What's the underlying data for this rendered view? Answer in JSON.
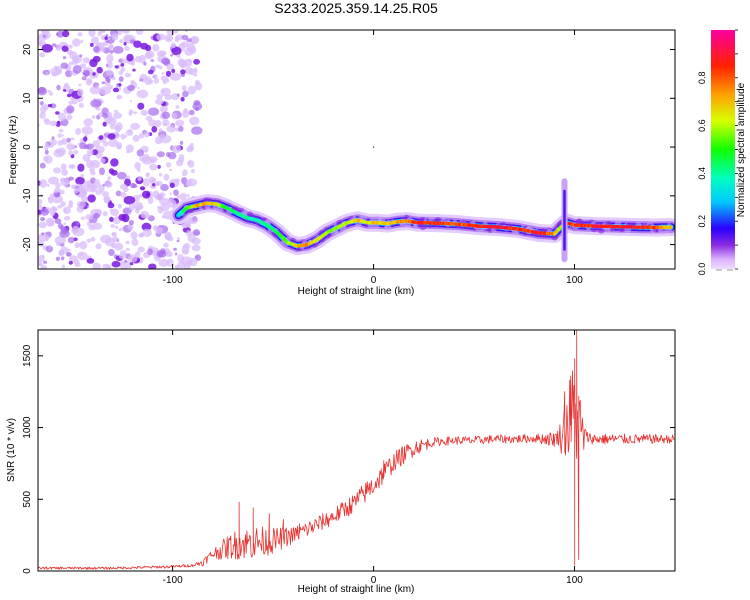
{
  "figure": {
    "title": "S233.2025.359.14.25.R05"
  },
  "chart_data": [
    {
      "type": "heatmap",
      "xlabel": "Height of straight line (km)",
      "ylabel": "Frequency (Hz)",
      "xlim": [
        -167,
        150
      ],
      "ylim": [
        -25,
        24
      ],
      "xticks": [
        -100,
        0,
        100
      ],
      "yticks": [
        -20,
        -10,
        0,
        10,
        20
      ],
      "colorbar": {
        "label": "Normalized spectral amplitude",
        "range": [
          0,
          1
        ],
        "ticks": [
          "0.0",
          "0.2",
          "0.4",
          "0.6",
          "0.8"
        ]
      },
      "noise_region_x": [
        -167,
        -93
      ],
      "ridge": {
        "x": [
          -97,
          -93,
          -88,
          -83,
          -78,
          -73,
          -68,
          -63,
          -58,
          -53,
          -48,
          -43,
          -38,
          -33,
          -28,
          -23,
          -18,
          -13,
          -8,
          -3,
          2,
          7,
          12,
          17,
          22,
          32,
          42,
          52,
          62,
          72,
          82,
          90,
          93,
          96,
          100,
          110,
          120,
          130,
          140,
          148
        ],
        "y": [
          -14,
          -12.5,
          -12,
          -11.5,
          -11.7,
          -12.5,
          -13.5,
          -14.5,
          -15,
          -16,
          -17.5,
          -19.5,
          -20.3,
          -20,
          -19,
          -17.5,
          -16.5,
          -15.5,
          -15,
          -15.5,
          -15.5,
          -15.7,
          -15.3,
          -15.2,
          -15.5,
          -15.6,
          -15.8,
          -16.2,
          -16.4,
          -16.8,
          -17.6,
          -17.8,
          -16.5,
          -15.5,
          -16,
          -16.2,
          -16.3,
          -16.4,
          -16.5,
          -16.4
        ],
        "amplitude": [
          0.35,
          0.55,
          0.75,
          0.8,
          0.7,
          0.5,
          0.45,
          0.45,
          0.4,
          0.45,
          0.5,
          0.6,
          0.75,
          0.8,
          0.7,
          0.65,
          0.6,
          0.65,
          0.75,
          0.7,
          0.75,
          0.7,
          0.8,
          0.8,
          0.95,
          0.9,
          0.85,
          0.95,
          0.98,
          0.9,
          0.95,
          0.8,
          0.6,
          0.95,
          0.9,
          0.95,
          0.95,
          0.95,
          0.9,
          0.7
        ]
      },
      "spike": {
        "x": 95,
        "y_range": [
          -23,
          -7
        ]
      }
    },
    {
      "type": "line",
      "xlabel": "Height of straight line (km)",
      "ylabel": "SNR (10 * v/v)",
      "xlim": [
        -167,
        150
      ],
      "ylim": [
        0,
        1680
      ],
      "xticks": [
        -100,
        0,
        100
      ],
      "yticks": [
        0,
        500,
        1000,
        1500
      ],
      "series": [
        {
          "color": "#e8312f",
          "envelope": {
            "x": [
              -167,
              -130,
              -100,
              -90,
              -85,
              -80,
              -70,
              -60,
              -50,
              -40,
              -30,
              -20,
              -10,
              0,
              10,
              20,
              30,
              40,
              50,
              60,
              70,
              80,
              90,
              94,
              97,
              100,
              102,
              104,
              110,
              120,
              130,
              140,
              150
            ],
            "y": [
              20,
              20,
              30,
              40,
              60,
              120,
              180,
              200,
              210,
              250,
              310,
              380,
              470,
              600,
              760,
              860,
              900,
              910,
              910,
              920,
              920,
              925,
              920,
              950,
              1050,
              1100,
              1050,
              940,
              920,
              920,
              920,
              920,
              920
            ]
          },
          "noise": {
            "x": [
              -167,
              -90,
              -80,
              -70,
              -60,
              -50,
              -40,
              -20,
              0,
              20,
              30,
              80,
              92,
              96,
              100,
              103,
              106,
              150
            ],
            "y": [
              8,
              10,
              40,
              100,
              120,
              90,
              60,
              60,
              80,
              60,
              30,
              30,
              60,
              250,
              400,
              250,
              40,
              30
            ]
          },
          "peaks": [
            {
              "x": -67,
              "y": 480
            },
            {
              "x": -60,
              "y": 440
            },
            {
              "x": -52,
              "y": 400
            },
            {
              "x": -45,
              "y": 360
            },
            {
              "x": -37,
              "y": 330
            },
            {
              "x": -3,
              "y": 580
            },
            {
              "x": 5,
              "y": 770
            },
            {
              "x": 95,
              "y": 1250
            },
            {
              "x": 98,
              "y": 1360
            },
            {
              "x": 100,
              "y": 1480
            },
            {
              "x": 101,
              "y": 1680
            },
            {
              "x": 100,
              "y": 40
            },
            {
              "x": 102,
              "y": 80
            }
          ]
        }
      ]
    }
  ]
}
